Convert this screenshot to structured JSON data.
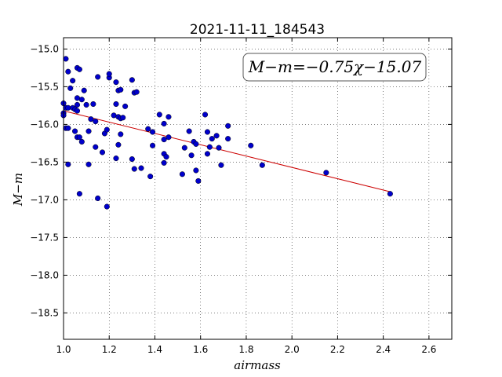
{
  "chart_data": {
    "type": "scatter",
    "title": "2021-11-11_184543",
    "xlabel": "airmass",
    "ylabel": "M−m",
    "xlim": [
      1.0,
      2.7
    ],
    "ylim": [
      -18.85,
      -14.85
    ],
    "y_inverted": true,
    "grid": true,
    "x_ticks": [
      1.0,
      1.2,
      1.4,
      1.6,
      1.8,
      2.0,
      2.2,
      2.4,
      2.6
    ],
    "x_tick_labels": [
      "1.0",
      "1.2",
      "1.4",
      "1.6",
      "1.8",
      "2.0",
      "2.2",
      "2.4",
      "2.6"
    ],
    "y_ticks": [
      -15.0,
      -15.5,
      -16.0,
      -16.5,
      -17.0,
      -17.5,
      -18.0,
      -18.5
    ],
    "y_tick_labels": [
      "−15.0",
      "−15.5",
      "−16.0",
      "−16.5",
      "−17.0",
      "−17.5",
      "−18.0",
      "−18.5"
    ],
    "marker_color": "#0000cc",
    "fit_line": {
      "color": "#cc0000",
      "slope": -0.75,
      "intercept": -15.07,
      "x_range": [
        1.0,
        2.43
      ]
    },
    "annotation": "M−m=−0.75χ−15.07",
    "annotation_position": "top-right",
    "points": [
      [
        1.01,
        -15.13
      ],
      [
        1.02,
        -15.3
      ],
      [
        1.03,
        -15.52
      ],
      [
        1.04,
        -15.42
      ],
      [
        1.06,
        -15.25
      ],
      [
        1.07,
        -15.27
      ],
      [
        1.0,
        -15.72
      ],
      [
        1.01,
        -15.78
      ],
      [
        1.02,
        -15.78
      ],
      [
        1.04,
        -15.78
      ],
      [
        1.06,
        -15.74
      ],
      [
        1.06,
        -15.65
      ],
      [
        1.08,
        -15.67
      ],
      [
        1.09,
        -15.55
      ],
      [
        1.1,
        -15.74
      ],
      [
        1.13,
        -15.73
      ],
      [
        1.15,
        -15.37
      ],
      [
        1.2,
        -15.38
      ],
      [
        1.2,
        -15.33
      ],
      [
        1.23,
        -15.44
      ],
      [
        1.24,
        -15.55
      ],
      [
        1.25,
        -15.54
      ],
      [
        1.3,
        -15.41
      ],
      [
        1.31,
        -15.58
      ],
      [
        1.32,
        -15.57
      ],
      [
        1.0,
        -15.85
      ],
      [
        1.0,
        -15.88
      ],
      [
        1.05,
        -15.8
      ],
      [
        1.06,
        -15.82
      ],
      [
        1.01,
        -16.05
      ],
      [
        1.02,
        -16.05
      ],
      [
        1.05,
        -16.09
      ],
      [
        1.06,
        -16.17
      ],
      [
        1.07,
        -16.17
      ],
      [
        1.08,
        -16.23
      ],
      [
        1.11,
        -16.09
      ],
      [
        1.12,
        -15.93
      ],
      [
        1.14,
        -15.96
      ],
      [
        1.18,
        -16.12
      ],
      [
        1.19,
        -16.07
      ],
      [
        1.22,
        -15.88
      ],
      [
        1.23,
        -15.73
      ],
      [
        1.24,
        -15.9
      ],
      [
        1.25,
        -15.92
      ],
      [
        1.26,
        -15.91
      ],
      [
        1.27,
        -15.76
      ],
      [
        1.37,
        -16.06
      ],
      [
        1.39,
        -16.1
      ],
      [
        1.42,
        -15.87
      ],
      [
        1.44,
        -15.99
      ],
      [
        1.46,
        -15.9
      ],
      [
        1.44,
        -16.2
      ],
      [
        1.46,
        -16.17
      ],
      [
        1.53,
        -16.31
      ],
      [
        1.55,
        -16.09
      ],
      [
        1.57,
        -16.23
      ],
      [
        1.58,
        -16.26
      ],
      [
        1.62,
        -15.87
      ],
      [
        1.63,
        -16.1
      ],
      [
        1.65,
        -16.19
      ],
      [
        1.67,
        -16.15
      ],
      [
        1.64,
        -16.3
      ],
      [
        1.68,
        -16.31
      ],
      [
        1.72,
        -16.02
      ],
      [
        1.72,
        -16.19
      ],
      [
        1.02,
        -16.53
      ],
      [
        1.11,
        -16.53
      ],
      [
        1.14,
        -16.3
      ],
      [
        1.17,
        -16.37
      ],
      [
        1.24,
        -16.27
      ],
      [
        1.25,
        -16.13
      ],
      [
        1.23,
        -16.45
      ],
      [
        1.3,
        -16.46
      ],
      [
        1.31,
        -16.59
      ],
      [
        1.34,
        -16.58
      ],
      [
        1.38,
        -16.69
      ],
      [
        1.39,
        -16.28
      ],
      [
        1.44,
        -16.39
      ],
      [
        1.45,
        -16.43
      ],
      [
        1.44,
        -16.51
      ],
      [
        1.52,
        -16.66
      ],
      [
        1.56,
        -16.41
      ],
      [
        1.58,
        -16.61
      ],
      [
        1.59,
        -16.75
      ],
      [
        1.63,
        -16.39
      ],
      [
        1.69,
        -16.54
      ],
      [
        1.82,
        -16.28
      ],
      [
        1.87,
        -16.54
      ],
      [
        2.15,
        -16.64
      ],
      [
        2.43,
        -16.92
      ],
      [
        1.07,
        -16.92
      ],
      [
        1.15,
        -16.98
      ],
      [
        1.19,
        -17.09
      ]
    ]
  }
}
